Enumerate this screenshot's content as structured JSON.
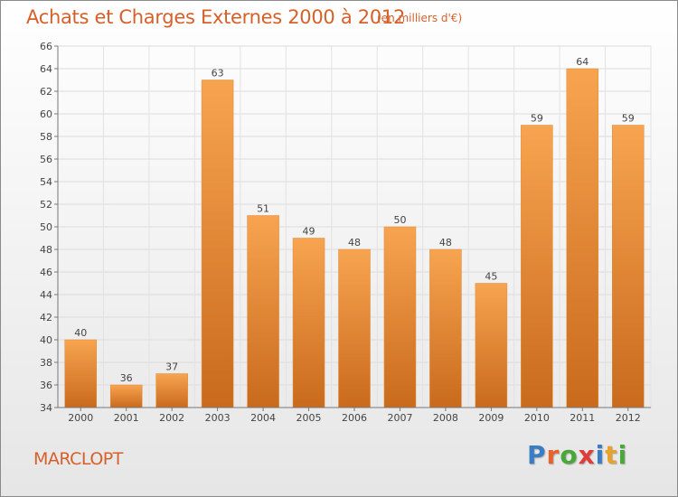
{
  "title": "Achats et Charges Externes 2000 à 2012",
  "subtitle": "(en milliers d'€)",
  "commune": "MARCLOPT",
  "logo": {
    "letters": [
      "P",
      "r",
      "o",
      "x",
      "i",
      "t",
      "i"
    ],
    "colors": [
      "#3b7dc4",
      "#e8622a",
      "#4aa83a",
      "#e03c3c",
      "#3b7dc4",
      "#e8a12a",
      "#4aa83a"
    ]
  },
  "colors": {
    "bar_top": "#f7a450",
    "bar_bottom": "#c96a1c",
    "title": "#d6602a"
  },
  "chart_data": {
    "type": "bar",
    "categories": [
      "2000",
      "2001",
      "2002",
      "2003",
      "2004",
      "2005",
      "2006",
      "2007",
      "2008",
      "2009",
      "2010",
      "2011",
      "2012"
    ],
    "values": [
      40,
      36,
      37,
      63,
      51,
      49,
      48,
      50,
      48,
      45,
      59,
      64,
      59
    ],
    "ylim": [
      34,
      66
    ],
    "yticks": [
      34,
      36,
      38,
      40,
      42,
      44,
      46,
      48,
      50,
      52,
      54,
      56,
      58,
      60,
      62,
      64,
      66
    ],
    "grid": true
  }
}
